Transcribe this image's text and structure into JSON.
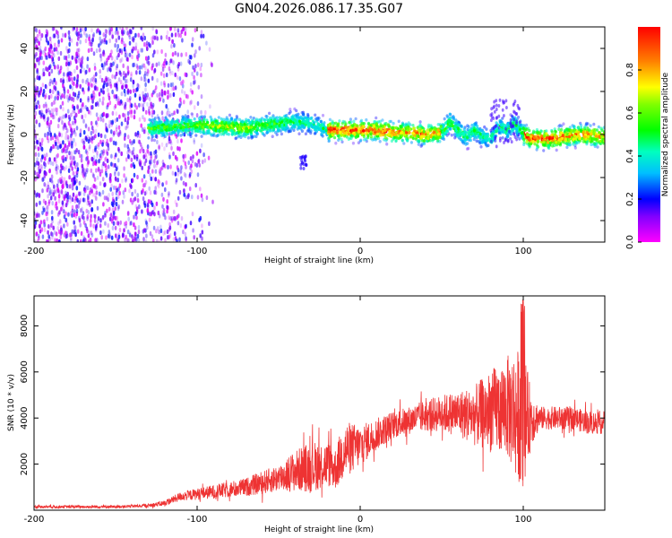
{
  "title": "GN04.2026.086.17.35.G07",
  "chart_data": [
    {
      "type": "heatmap",
      "xlabel": "Height of straight line (km)",
      "ylabel": "Frequency (Hz)",
      "xlim": [
        -200,
        150
      ],
      "ylim": [
        -50,
        50
      ],
      "xticks": [
        -200,
        -100,
        0,
        100
      ],
      "yticks": [
        -40,
        -20,
        0,
        20,
        40
      ],
      "ridge": [
        [
          -125,
          3
        ],
        [
          -110,
          4
        ],
        [
          -90,
          4
        ],
        [
          -70,
          3
        ],
        [
          -50,
          5
        ],
        [
          -40,
          6
        ],
        [
          -30,
          5
        ],
        [
          -20,
          2
        ],
        [
          -10,
          2
        ],
        [
          0,
          2
        ],
        [
          10,
          2
        ],
        [
          20,
          1
        ],
        [
          30,
          1
        ],
        [
          40,
          0
        ],
        [
          50,
          1
        ],
        [
          55,
          6
        ],
        [
          60,
          2
        ],
        [
          65,
          -1
        ],
        [
          70,
          2
        ],
        [
          75,
          -1
        ],
        [
          80,
          -2
        ],
        [
          85,
          4
        ],
        [
          90,
          2
        ],
        [
          95,
          5
        ],
        [
          100,
          0
        ],
        [
          105,
          -2
        ],
        [
          115,
          -2
        ],
        [
          125,
          -1
        ],
        [
          135,
          0
        ],
        [
          150,
          -1
        ]
      ],
      "colorbar": {
        "label": "Normalized spectral amplitude",
        "ticks": [
          "0.0",
          "0.2",
          "0.4",
          "0.6",
          "0.8"
        ],
        "range": [
          0,
          1
        ]
      }
    },
    {
      "type": "line",
      "xlabel": "Height of straight line (km)",
      "ylabel": "SNR (10 * v/v)",
      "xlim": [
        -200,
        150
      ],
      "ylim": [
        0,
        9300
      ],
      "xticks": [
        -200,
        -100,
        0,
        100
      ],
      "yticks": [
        2000,
        4000,
        6000,
        8000
      ],
      "color": "#ee3333",
      "envelope": [
        [
          -200,
          150,
          60
        ],
        [
          -150,
          150,
          60
        ],
        [
          -130,
          200,
          80
        ],
        [
          -120,
          300,
          120
        ],
        [
          -110,
          600,
          200
        ],
        [
          -90,
          800,
          300
        ],
        [
          -70,
          1000,
          400
        ],
        [
          -50,
          1400,
          600
        ],
        [
          -40,
          1700,
          900
        ],
        [
          -30,
          1900,
          1100
        ],
        [
          -20,
          2000,
          1000
        ],
        [
          -15,
          1800,
          900
        ],
        [
          -10,
          2600,
          1300
        ],
        [
          0,
          2800,
          900
        ],
        [
          10,
          3300,
          700
        ],
        [
          20,
          3700,
          600
        ],
        [
          30,
          3900,
          600
        ],
        [
          40,
          4100,
          700
        ],
        [
          50,
          4200,
          800
        ],
        [
          60,
          4200,
          1000
        ],
        [
          70,
          4100,
          1300
        ],
        [
          80,
          4300,
          1800
        ],
        [
          90,
          4500,
          2200
        ],
        [
          95,
          4200,
          2800
        ],
        [
          100,
          4000,
          3000
        ],
        [
          105,
          4000,
          1200
        ],
        [
          110,
          4000,
          500
        ],
        [
          120,
          4000,
          500
        ],
        [
          130,
          4000,
          500
        ],
        [
          140,
          3800,
          500
        ],
        [
          150,
          3800,
          500
        ]
      ]
    }
  ]
}
